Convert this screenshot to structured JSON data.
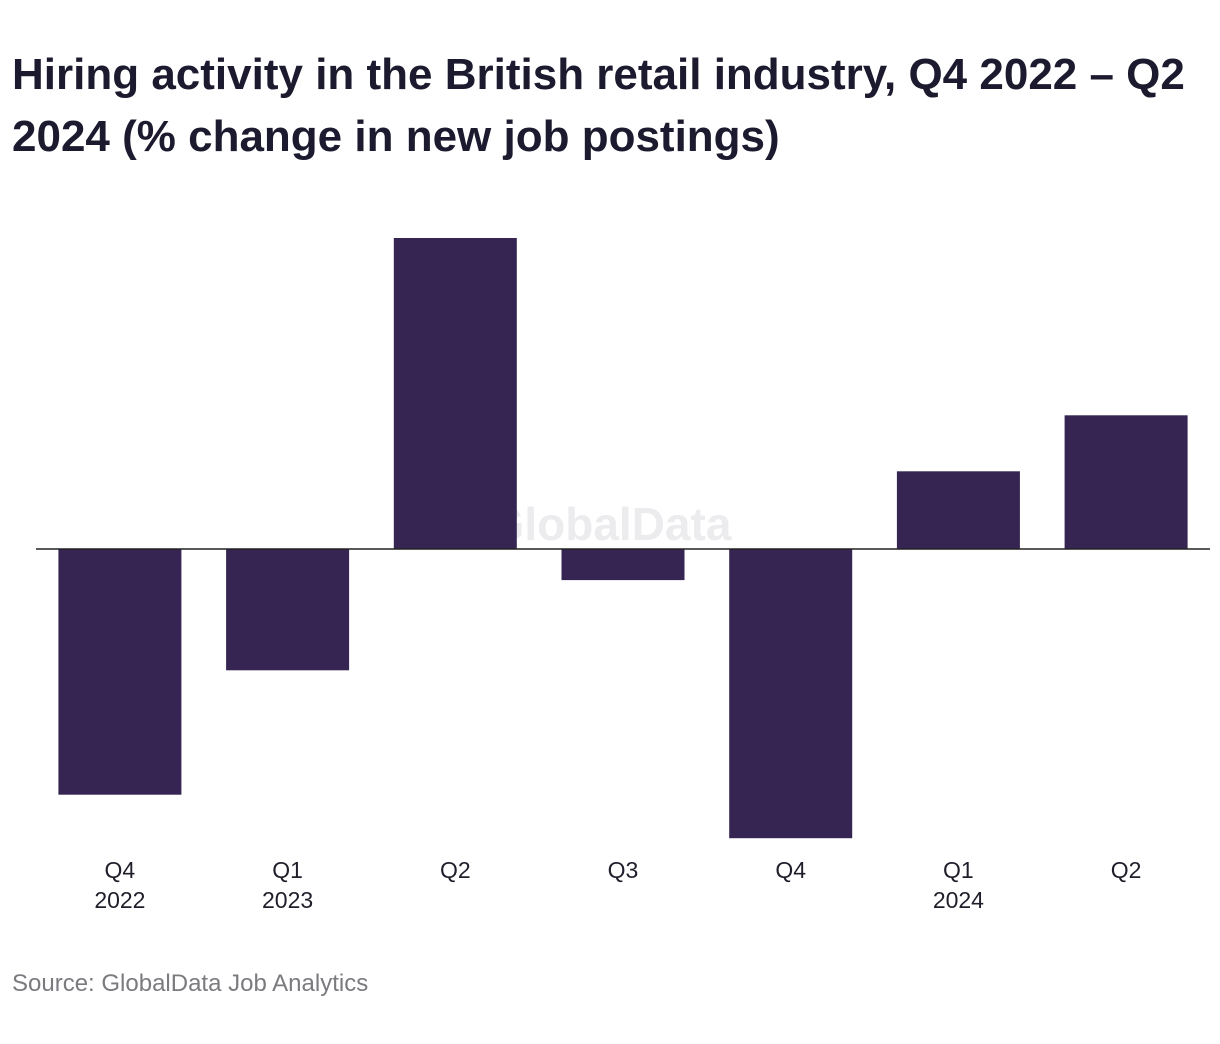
{
  "title": "Hiring activity in the British retail industry, Q4 2022 – Q2 2024 (% change in new job postings)",
  "source": "Source: GlobalData Job Analytics",
  "watermark": "GlobalData",
  "colors": {
    "bar": "#362453",
    "axis": "#222222",
    "title": "#1c1a2e",
    "source": "#7a7a7f"
  },
  "chart_data": {
    "type": "bar",
    "categories": [
      {
        "quarter": "Q4",
        "year": "2022"
      },
      {
        "quarter": "Q1",
        "year": "2023"
      },
      {
        "quarter": "Q2",
        "year": ""
      },
      {
        "quarter": "Q3",
        "year": ""
      },
      {
        "quarter": "Q4",
        "year": ""
      },
      {
        "quarter": "Q1",
        "year": "2024"
      },
      {
        "quarter": "Q2",
        "year": ""
      }
    ],
    "values": [
      -7.9,
      -3.9,
      10.0,
      -1.0,
      -9.3,
      2.5,
      4.3
    ],
    "ylim": [
      -9.3,
      10.0
    ],
    "xlabel": "",
    "ylabel": "",
    "grid": false,
    "legend": "none"
  }
}
